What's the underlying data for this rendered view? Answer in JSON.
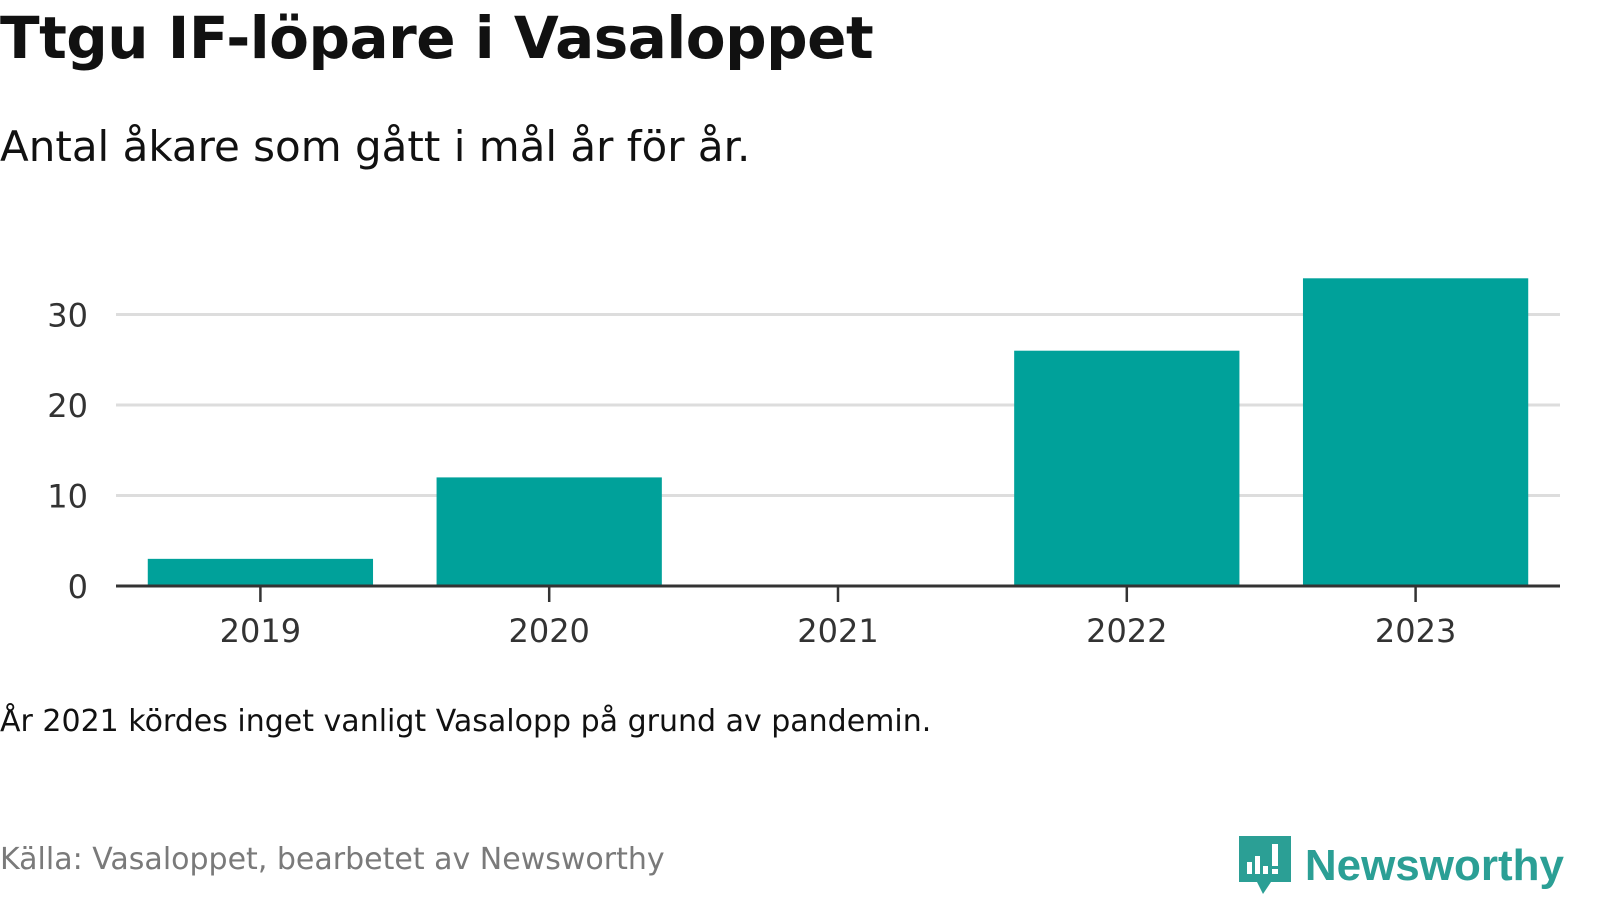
{
  "header": {
    "title": "Ttgu IF-löpare i Vasaloppet",
    "subtitle": "Antal åkare som gått i mål år för år."
  },
  "footer": {
    "note": "År 2021 kördes inget vanligt Vasalopp på grund av pandemin.",
    "source": "Källa: Vasaloppet, bearbetet av Newsworthy",
    "brand": "Newsworthy",
    "brand_icon": "newsworthy-chart-bubble-icon"
  },
  "colors": {
    "bar": "#00a19a",
    "grid": "#dddddd",
    "axis": "#333333",
    "brand": "#2b9f95"
  },
  "chart_data": {
    "type": "bar",
    "categories": [
      "2019",
      "2020",
      "2021",
      "2022",
      "2023"
    ],
    "values": [
      3,
      12,
      0,
      26,
      34
    ],
    "xlabel": "",
    "ylabel": "",
    "ylim": [
      0,
      35
    ],
    "yticks": [
      0,
      10,
      20,
      30
    ],
    "grid": true,
    "legend": "none"
  }
}
